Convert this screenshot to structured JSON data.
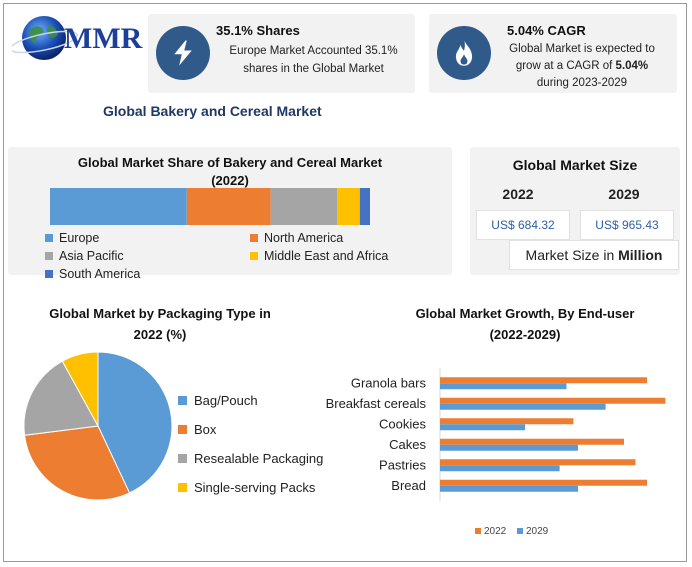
{
  "brand": {
    "logo_text": "MMR"
  },
  "report_title": "Global Bakery and Cereal Market",
  "stat_cards": [
    {
      "title": "35.1% Shares",
      "line1": "Europe Market Accounted 35.1%",
      "line2": "shares in the Global Market",
      "icon": "lightning-icon"
    },
    {
      "title": "5.04% CAGR",
      "line1": "Global Market is expected to",
      "line2_prefix": "grow at a CAGR of ",
      "line2_bold": "5.04%",
      "line3": "during 2023-2029",
      "icon": "flame-icon"
    }
  ],
  "market_size": {
    "title": "Global Market Size",
    "year1": "2022",
    "year2": "2029",
    "value1": "US$ 684.32",
    "value2": "US$ 965.43",
    "note_prefix": "Market Size in ",
    "note_bold": "Million"
  },
  "colors": {
    "europe": "#5b9bd5",
    "north_america": "#ed7d31",
    "asia_pacific": "#a5a5a5",
    "mea": "#ffc000",
    "south_america": "#4472c4",
    "icon_bg": "#2f5a8a",
    "title_blue": "#1f3864"
  },
  "chart_data": [
    {
      "type": "bar",
      "orientation": "horizontal-stacked",
      "title": "Global Market Share of Bakery and Cereal Market",
      "subtitle": "(2022)",
      "series": [
        {
          "name": "Europe",
          "value": 35.1,
          "color": "#5b9bd5"
        },
        {
          "name": "North America",
          "value": 21.5,
          "color": "#ed7d31"
        },
        {
          "name": "Asia Pacific",
          "value": 17.1,
          "color": "#a5a5a5"
        },
        {
          "name": "Middle East and Africa",
          "value": 5.8,
          "color": "#ffc000"
        },
        {
          "name": "South America",
          "value": 2.6,
          "color": "#4472c4"
        }
      ],
      "legend": "bottom"
    },
    {
      "type": "pie",
      "title": "Global Market by Packaging Type in",
      "subtitle": "2022 (%)",
      "slices": [
        {
          "name": "Bag/Pouch",
          "value": 43,
          "color": "#5b9bd5"
        },
        {
          "name": "Box",
          "value": 30,
          "color": "#ed7d31"
        },
        {
          "name": "Resealable Packaging",
          "value": 19,
          "color": "#a5a5a5"
        },
        {
          "name": "Single-serving Packs",
          "value": 8,
          "color": "#ffc000"
        }
      ],
      "legend": "right"
    },
    {
      "type": "bar",
      "orientation": "horizontal",
      "title": "Global Market Growth, By End-user",
      "subtitle": "(2022-2029)",
      "categories": [
        "Granola bars",
        "Breakfast cereals",
        "Cookies",
        "Cakes",
        "Pastries",
        "Bread"
      ],
      "series": [
        {
          "name": "2022",
          "values": [
            9.0,
            9.8,
            5.8,
            8.0,
            8.5,
            9.0
          ],
          "color": "#ed7d31"
        },
        {
          "name": "2029",
          "values": [
            5.5,
            7.2,
            3.7,
            6.0,
            5.2,
            6.0
          ],
          "color": "#5b9bd5"
        }
      ],
      "xlim": [
        0,
        10
      ],
      "legend": "bottom"
    }
  ]
}
